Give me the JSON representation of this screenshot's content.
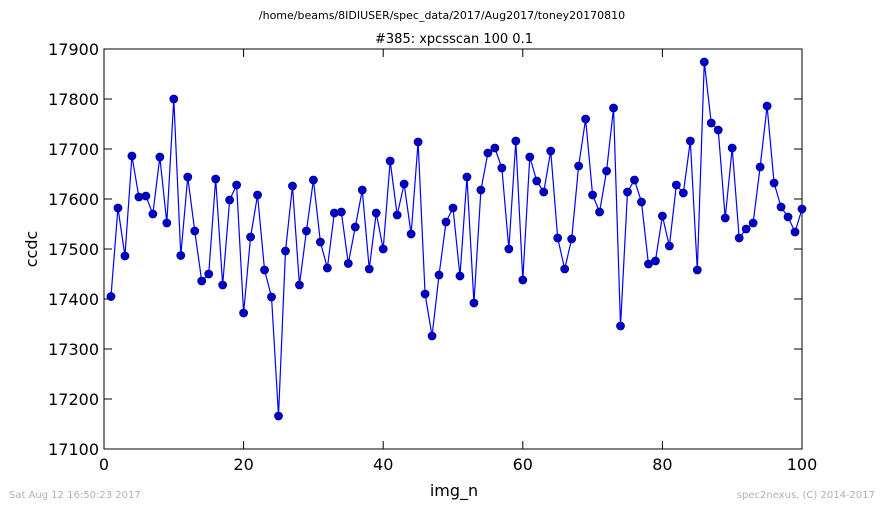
{
  "supertitle": "/home/beams/8IDIUSER/spec_data/2017/Aug2017/toney20170810",
  "footer_left": "Sat Aug 12 16:50:23 2017",
  "footer_right": "spec2nexus, (C) 2014-2017",
  "colors": {
    "series": "#0000ff",
    "marker_fill": "#0000cc",
    "marker_edge": "#000080"
  },
  "chart_data": {
    "type": "line",
    "title": "#385: xpcsscan 100 0.1",
    "xlabel": "img_n",
    "ylabel": "ccdc",
    "xlim": [
      0,
      100
    ],
    "ylim": [
      17100,
      17900
    ],
    "xticks": [
      0,
      20,
      40,
      60,
      80,
      100
    ],
    "yticks": [
      17100,
      17200,
      17300,
      17400,
      17500,
      17600,
      17700,
      17800,
      17900
    ],
    "grid": false,
    "markers": "circle",
    "series": [
      {
        "x": [
          1,
          2,
          3,
          4,
          5,
          6,
          7,
          8,
          9,
          10,
          11,
          12,
          13,
          14,
          15,
          16,
          17,
          18,
          19,
          20,
          21,
          22,
          23,
          24,
          25,
          26,
          27,
          28,
          29,
          30,
          31,
          32,
          33,
          34,
          35,
          36,
          37,
          38,
          39,
          40,
          41,
          42,
          43,
          44,
          45,
          46,
          47,
          48,
          49,
          50,
          51,
          52,
          53,
          54,
          55,
          56,
          57,
          58,
          59,
          60,
          61,
          62,
          63,
          64,
          65,
          66,
          67,
          68,
          69,
          70,
          71,
          72,
          73,
          74,
          75,
          76,
          77,
          78,
          79,
          80,
          81,
          82,
          83,
          84,
          85,
          86,
          87,
          88,
          89,
          90,
          91,
          92,
          93,
          94,
          95,
          96,
          97,
          98,
          99,
          100
        ],
        "values": [
          17405,
          17582,
          17486,
          17686,
          17604,
          17606,
          17570,
          17684,
          17552,
          17800,
          17487,
          17644,
          17536,
          17436,
          17450,
          17640,
          17428,
          17598,
          17628,
          17372,
          17524,
          17608,
          17458,
          17404,
          17166,
          17496,
          17626,
          17428,
          17536,
          17638,
          17514,
          17462,
          17572,
          17574,
          17471,
          17544,
          17618,
          17460,
          17572,
          17500,
          17676,
          17568,
          17630,
          17530,
          17714,
          17410,
          17326,
          17448,
          17554,
          17582,
          17446,
          17644,
          17392,
          17618,
          17692,
          17702,
          17662,
          17500,
          17716,
          17438,
          17684,
          17636,
          17614,
          17696,
          17522,
          17460,
          17520,
          17666,
          17760,
          17608,
          17574,
          17656,
          17782,
          17346,
          17614,
          17638,
          17594,
          17470,
          17476,
          17566,
          17506,
          17628,
          17612,
          17716,
          17458,
          17874,
          17752,
          17738,
          17562,
          17702,
          17522,
          17540,
          17552,
          17664,
          17786,
          17632,
          17584,
          17564,
          17534,
          17580
        ]
      }
    ]
  }
}
